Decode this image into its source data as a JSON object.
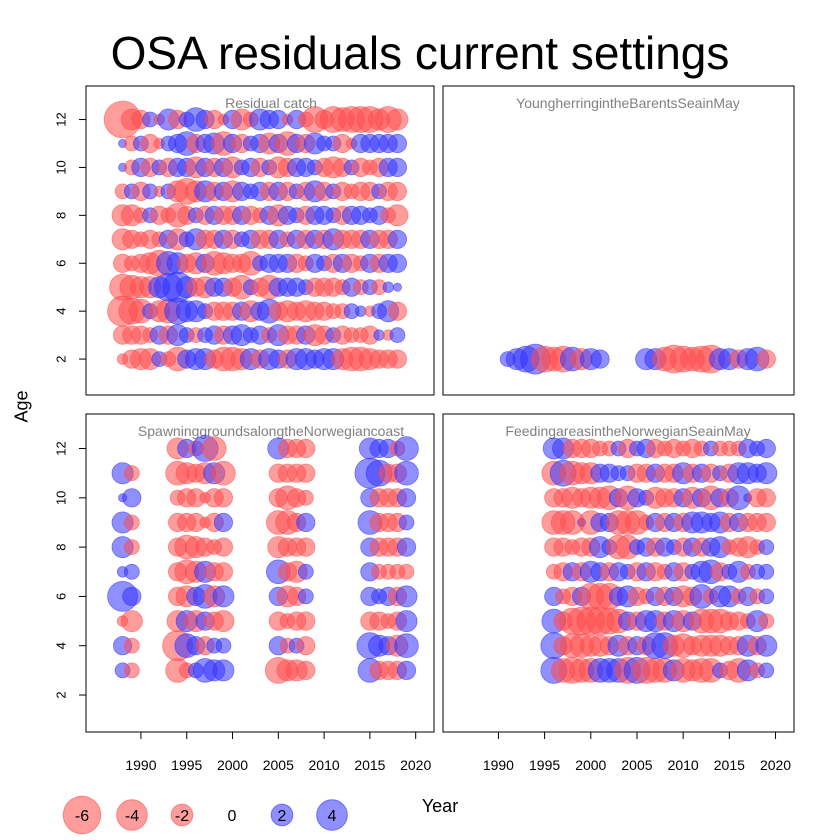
{
  "title": "OSA residuals current settings",
  "chart_data": {
    "type": "scatter",
    "encoding": "bubble",
    "xlabel": "Year",
    "ylabel": "Age",
    "xlim": [
      1984,
      2022
    ],
    "ylim": [
      0.5,
      13.4
    ],
    "x_ticks": [
      1990,
      1995,
      2000,
      2005,
      2010,
      2015,
      2020
    ],
    "y_ticks": [
      2,
      4,
      6,
      8,
      10,
      12
    ],
    "colors": {
      "negative": "#ff4d4d",
      "positive": "#3333ff"
    },
    "legend": {
      "placement": "bottom-left",
      "entries": [
        {
          "label": "-6",
          "value": -6
        },
        {
          "label": "-4",
          "value": -4
        },
        {
          "label": "-2",
          "value": -2
        },
        {
          "label": "0",
          "value": 0
        },
        {
          "label": "2",
          "value": 2
        },
        {
          "label": "4",
          "value": 4
        }
      ]
    },
    "panels": [
      {
        "name": "Residual catch",
        "years": [
          1988,
          2018
        ],
        "ages": [
          2,
          12
        ],
        "rows": {
          "12": [
            -6,
            -2,
            -1.5,
            1,
            -0.5,
            2,
            -1.5,
            1,
            2.5,
            1.5,
            -1.5,
            -0.5,
            1.5,
            -2,
            -1,
            2,
            1.5,
            1.5,
            -0.5,
            1.5,
            -1,
            -3,
            -1.5,
            -3,
            -2.5,
            -3,
            -3,
            -3,
            -2,
            -3,
            -2
          ],
          "11": [
            0.3,
            -1,
            1,
            -1.5,
            -0.5,
            1,
            1.5,
            2.5,
            -1.5,
            1.5,
            2,
            -2.5,
            1.5,
            -1.5,
            1,
            1.5,
            -2,
            1.5,
            -2.5,
            1.5,
            -1.5,
            2,
            1,
            1,
            -1.5,
            -0.5,
            1.5,
            1.5,
            1.5,
            1.5,
            1.5
          ],
          "10": [
            0.3,
            -1,
            1.5,
            -1.5,
            1,
            -1.5,
            1.5,
            1.5,
            -2,
            1.5,
            -1.5,
            1.5,
            -2,
            1,
            1.5,
            -1.5,
            1,
            -2,
            -1.5,
            1.5,
            1.5,
            1,
            -1.5,
            -2,
            -1.5,
            1,
            -1.5,
            -1,
            -1.5,
            1.5,
            1.5
          ],
          "9": [
            -1,
            1,
            -1.5,
            1,
            -0.5,
            1,
            -2,
            -3,
            -2,
            2,
            -1.5,
            1.5,
            -2,
            1.5,
            1,
            1.5,
            -1.5,
            1.5,
            -1.5,
            1,
            -1.5,
            2,
            -1.5,
            1,
            -1.5,
            -1,
            -1.5,
            -1.5,
            1,
            -1.5,
            -1.5
          ],
          "8": [
            -2,
            -2,
            -1,
            1,
            -1.5,
            -1,
            -2.5,
            -1.5,
            1,
            -1.5,
            1.5,
            -1.5,
            -1.5,
            1.5,
            -1.5,
            -1,
            1.5,
            -2,
            1.5,
            1,
            -1.5,
            1.5,
            1.5,
            1,
            -1.5,
            1.5,
            1.5,
            1,
            1.5,
            -1,
            -2
          ],
          "7": [
            -2,
            -1.5,
            -1,
            -1.5,
            -1,
            1.5,
            -2,
            1,
            2,
            -1.5,
            -1.5,
            1.5,
            -1.5,
            1,
            1.5,
            -1.5,
            -1.5,
            1.5,
            -1,
            1.5,
            -1.5,
            1.5,
            -1.5,
            2,
            -1.5,
            -1.5,
            -1.5,
            1.5,
            -1.5,
            -1.5,
            1.5
          ],
          "6": [
            -1.5,
            -1,
            -1.5,
            -2,
            -3,
            2.5,
            2,
            -1.5,
            -2,
            1.5,
            -2.5,
            -2,
            -1.5,
            -1.5,
            -2.5,
            1,
            1.5,
            1.5,
            1.5,
            -1.5,
            -1,
            1.5,
            1,
            -1.5,
            1.5,
            -1.5,
            -1,
            1.5,
            -1.5,
            1.5,
            1.5
          ],
          "5": [
            -3,
            -2.5,
            -2,
            -2,
            2,
            3.5,
            4,
            2,
            -1.5,
            -2,
            1.5,
            1.5,
            -1.5,
            -2.5,
            1,
            -1.5,
            -2.5,
            1.5,
            1.5,
            1.5,
            1,
            -1.5,
            -1.5,
            -1.5,
            -1,
            1.5,
            -1,
            1,
            -1,
            0.5,
            0.3
          ],
          "4": [
            -4,
            -3,
            -2.5,
            1,
            -2,
            -2.5,
            3,
            2,
            2,
            1,
            -1.5,
            -1.5,
            -1.5,
            1.5,
            -2,
            1.5,
            2.5,
            -1.5,
            -2,
            -1.5,
            -2,
            -1.5,
            -1.5,
            -1,
            -1,
            1,
            0.5,
            -0.5,
            1,
            2,
            -1.5
          ],
          "3": [
            -1.5,
            -1.5,
            -1.5,
            -1,
            1.5,
            -1.5,
            2,
            1,
            -1,
            1,
            1.5,
            -1.5,
            1.5,
            2,
            1,
            1.5,
            -1,
            2,
            -1.5,
            -1.5,
            1.5,
            -2,
            -1.5,
            1,
            -1.5,
            -1,
            -1,
            -1.5,
            0.5,
            -0.5,
            1
          ],
          "2": [
            -0.5,
            -1.5,
            -2,
            -2,
            1,
            -1,
            -2.5,
            1.5,
            2,
            2,
            -1.5,
            -2.5,
            -2.5,
            -2,
            2,
            -1.5,
            2,
            1.5,
            -1.5,
            2,
            2,
            1.5,
            2,
            2,
            -2,
            -2.5,
            -2.5,
            -2,
            -1.5,
            -1.5,
            -1.5
          ]
        }
      },
      {
        "name": "YoungherringintheBarentsSeainMay",
        "years": [
          1991,
          2019
        ],
        "ages": [
          2,
          2
        ],
        "rows": {
          "2": [
            1,
            2,
            3,
            4,
            -3,
            -2.5,
            -3,
            2.5,
            -2,
            2,
            1.5,
            null,
            null,
            null,
            null,
            2,
            2,
            -2.5,
            -3.5,
            -3,
            -2.5,
            -3,
            -3.5,
            2,
            2,
            -1.5,
            2,
            2.5,
            -1.5
          ]
        }
      },
      {
        "name": "SpawninggroundsalongtheNorwegiancoast",
        "years": [
          1988,
          2019
        ],
        "ages": [
          3,
          12
        ],
        "rows": {
          "12": [
            null,
            null,
            null,
            null,
            null,
            null,
            -2,
            1.5,
            -1,
            3,
            -2.5,
            null,
            null,
            null,
            null,
            null,
            null,
            2,
            -1.5,
            -1.5,
            -1.5,
            null,
            null,
            null,
            null,
            null,
            null,
            2,
            1.5,
            1.5,
            -1,
            2.5
          ],
          "11": [
            2,
            -1,
            null,
            null,
            null,
            null,
            -2.5,
            -2,
            -1.5,
            -2,
            2,
            -2.5,
            null,
            null,
            null,
            null,
            null,
            -1.5,
            -1.5,
            -1.5,
            -1.5,
            null,
            null,
            null,
            null,
            null,
            null,
            4,
            3,
            -1.5,
            -1.5,
            2.5
          ],
          "10": [
            0.3,
            1.5,
            null,
            null,
            null,
            null,
            -1,
            -1.5,
            -1.5,
            -0.5,
            -1.5,
            -1.5,
            null,
            null,
            null,
            null,
            null,
            -1.5,
            -2.5,
            -1.5,
            -1,
            null,
            null,
            null,
            null,
            null,
            null,
            1.5,
            -1.5,
            -1.5,
            -1.5,
            1.5
          ],
          "9": [
            2,
            -1,
            null,
            null,
            null,
            null,
            -1.5,
            -1.5,
            -1.5,
            -0.5,
            -1.5,
            1.5,
            null,
            null,
            null,
            null,
            null,
            -2.5,
            -2.5,
            -1.5,
            1.5,
            null,
            null,
            null,
            null,
            null,
            null,
            2.5,
            -1.5,
            -1.5,
            -1.5,
            1
          ],
          "8": [
            2,
            -1,
            null,
            null,
            null,
            null,
            -1.5,
            -2.5,
            -2,
            -1.5,
            -1,
            -1.5,
            null,
            null,
            null,
            null,
            null,
            -2,
            -1.5,
            -1.5,
            -1.5,
            null,
            null,
            null,
            null,
            null,
            null,
            1.5,
            -1.5,
            -1.5,
            -1.5,
            1.5
          ],
          "7": [
            0.5,
            1,
            null,
            null,
            null,
            null,
            -1.5,
            -2.5,
            -2,
            2,
            -1.5,
            -1.5,
            null,
            null,
            null,
            null,
            null,
            2.5,
            -1.5,
            -2,
            1,
            null,
            null,
            null,
            null,
            null,
            null,
            1.5,
            -1,
            -1,
            -1,
            -1
          ],
          "6": [
            4,
            1.5,
            null,
            null,
            null,
            null,
            -1.5,
            -2,
            1.5,
            2.5,
            -2,
            2,
            null,
            null,
            null,
            null,
            null,
            1.5,
            -2,
            -1.5,
            1,
            null,
            null,
            null,
            null,
            null,
            null,
            1.5,
            1,
            1.5,
            -1.5,
            2
          ],
          "5": [
            -0.5,
            -2,
            null,
            null,
            null,
            null,
            -2,
            2,
            -2,
            1.5,
            -1.5,
            -2,
            null,
            null,
            null,
            null,
            null,
            -1.5,
            -1,
            -1.5,
            -1.5,
            null,
            null,
            null,
            null,
            null,
            null,
            -1.5,
            -1.5,
            -1,
            -1.5,
            2
          ],
          "4": [
            1.5,
            -1,
            null,
            null,
            null,
            null,
            -4,
            2.5,
            1.5,
            -1.5,
            1,
            1,
            null,
            null,
            null,
            null,
            null,
            1.5,
            -1,
            1,
            -1.5,
            null,
            null,
            null,
            null,
            null,
            null,
            3,
            2,
            1.5,
            -2,
            2.5
          ],
          "3": [
            1,
            -1,
            null,
            null,
            null,
            null,
            -2.5,
            -1,
            1,
            2.5,
            2,
            2,
            null,
            null,
            null,
            null,
            null,
            -3,
            -2,
            -2,
            -1.5,
            null,
            null,
            null,
            null,
            null,
            null,
            2.5,
            -1.5,
            -1.5,
            -1.5,
            1.5
          ]
        }
      },
      {
        "name": "FeedingareasintheNorwegianSeainMay",
        "years": [
          1996,
          2019
        ],
        "ages": [
          3,
          12
        ],
        "rows": {
          "12": [
            2,
            2,
            -1.5,
            -1.5,
            -1.5,
            -1,
            -1,
            1,
            -1.5,
            1,
            1.5,
            -1.5,
            -1,
            -1.5,
            -1,
            -1.5,
            -1,
            1,
            -1,
            -1,
            -1,
            1.5,
            1,
            1.5
          ],
          "11": [
            -2.5,
            3,
            -2.5,
            -2,
            -2,
            1.5,
            1.5,
            1,
            1,
            -1.5,
            -1.5,
            1.5,
            -1.5,
            -1.5,
            2,
            -1.5,
            1.5,
            -1.5,
            1,
            -1.5,
            2,
            2,
            1.5,
            2
          ],
          "10": [
            -1.5,
            -1.5,
            -2,
            -1.5,
            -2,
            -2,
            -2.5,
            1.5,
            -2.5,
            1.5,
            1,
            -2,
            -1.5,
            -1.5,
            1.5,
            -2,
            1.5,
            -2.5,
            1.5,
            -1.5,
            2.5,
            0.3,
            -1.5,
            -1.5
          ],
          "9": [
            -2.5,
            -2.5,
            -2.5,
            0.3,
            -2.5,
            1.5,
            1.5,
            -2.5,
            -2.5,
            -2.5,
            -1,
            1.5,
            -1.5,
            1.5,
            -1.5,
            2,
            2,
            1.5,
            2,
            -1.5,
            1.5,
            -1.5,
            -1.5,
            -1.5
          ],
          "8": [
            -1.5,
            -1.5,
            -1,
            -1.5,
            -1.5,
            2,
            1,
            -2.5,
            -2.5,
            1,
            1.5,
            -1.5,
            1.5,
            1,
            -1.5,
            1.5,
            -1.5,
            1.5,
            2,
            -1,
            -1.5,
            -2,
            -1,
            1
          ],
          "7": [
            -1,
            -1.5,
            1.5,
            -1.5,
            2,
            1.5,
            -1.5,
            1.5,
            1,
            -1.5,
            1.5,
            -1.5,
            -1,
            1.5,
            -1.5,
            1,
            2,
            2.5,
            -1.5,
            1,
            2,
            -1,
            1,
            1
          ],
          "6": [
            1.5,
            -1,
            -1.5,
            1.5,
            -3,
            -3,
            -3,
            1.5,
            2,
            -1.5,
            -1,
            1.5,
            -1.5,
            1.5,
            -2,
            -1.5,
            2.5,
            -1,
            2,
            2,
            -1,
            1.5,
            -1,
            1
          ],
          "5": [
            2.5,
            -1.5,
            -3,
            -3.5,
            -3.5,
            -3.5,
            -3,
            -2.5,
            1.5,
            -1.5,
            2,
            2,
            -1.5,
            2,
            -2,
            1.5,
            -2.5,
            -2.5,
            -2.5,
            -1.5,
            -1.5,
            -1,
            2,
            -1
          ],
          "4": [
            3,
            -1.5,
            -2.5,
            -2.5,
            -2,
            -2,
            -1.5,
            2,
            -1.5,
            1.5,
            -1.5,
            3,
            3,
            -2,
            -2.5,
            -1.5,
            -2,
            -2,
            -2,
            -1.5,
            -1.5,
            2,
            -1.5,
            2
          ],
          "3": [
            3,
            -2.5,
            -3,
            -2.5,
            -2.5,
            2.5,
            2.5,
            2.5,
            -3,
            3,
            -3,
            -2.5,
            -2.5,
            2,
            -2.5,
            -2,
            -2.5,
            -2.5,
            1,
            -1.5,
            -2.5,
            2,
            -1,
            1
          ]
        }
      }
    ]
  }
}
